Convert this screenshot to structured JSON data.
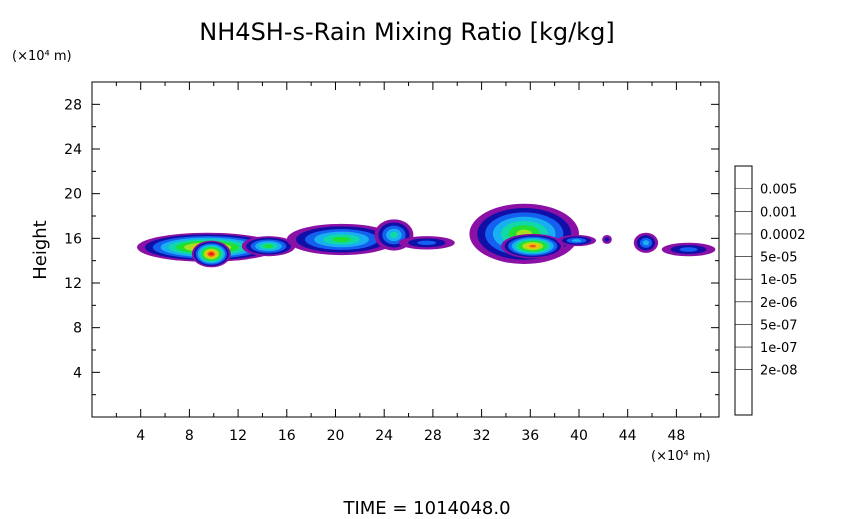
{
  "chart_data": {
    "type": "heatmap",
    "title": "NH4SH-s-Rain Mixing Ratio [kg/kg]",
    "ylabel": "Height",
    "xunit": "(×10⁴ m)",
    "yunit": "(×10⁴ m)",
    "footer": "TIME  =  1014048.0",
    "xlim": [
      0,
      51.5
    ],
    "ylim": [
      0,
      30
    ],
    "x_ticks": [
      4,
      8,
      12,
      16,
      20,
      24,
      28,
      32,
      36,
      40,
      44,
      48
    ],
    "y_ticks": [
      4,
      8,
      12,
      16,
      20,
      24,
      28
    ],
    "colorbar": {
      "levels": [
        "0.005",
        "0.001",
        "0.0002",
        "5e-05",
        "1e-05",
        "2e-06",
        "5e-07",
        "1e-07",
        "2e-08"
      ],
      "colors": [
        "#8b10a6",
        "#1010a8",
        "#1460f0",
        "#18b0f0",
        "#10d8a8",
        "#20e030",
        "#a8e020",
        "#f0c010",
        "#f06010",
        "#f01020",
        "#f08aa0"
      ]
    },
    "clouds": [
      {
        "x": 9.5,
        "y": 15.2,
        "rx": 5.8,
        "ry": 1.3,
        "peak": 9
      },
      {
        "x": 9.8,
        "y": 14.6,
        "rx": 1.6,
        "ry": 1.2,
        "peak": 10
      },
      {
        "x": 14.5,
        "y": 15.3,
        "rx": 2.2,
        "ry": 0.9,
        "peak": 6
      },
      {
        "x": 20.5,
        "y": 15.9,
        "rx": 4.5,
        "ry": 1.4,
        "peak": 6
      },
      {
        "x": 24.8,
        "y": 16.3,
        "rx": 1.6,
        "ry": 1.4,
        "peak": 5
      },
      {
        "x": 27.5,
        "y": 15.6,
        "rx": 2.3,
        "ry": 0.6,
        "peak": 3
      },
      {
        "x": 35.5,
        "y": 16.4,
        "rx": 4.5,
        "ry": 2.7,
        "peak": 7
      },
      {
        "x": 36.2,
        "y": 15.3,
        "rx": 2.6,
        "ry": 1.1,
        "peak": 9
      },
      {
        "x": 39.8,
        "y": 15.8,
        "rx": 1.6,
        "ry": 0.5,
        "peak": 4
      },
      {
        "x": 42.3,
        "y": 15.9,
        "rx": 0.4,
        "ry": 0.4,
        "peak": 2
      },
      {
        "x": 45.5,
        "y": 15.6,
        "rx": 1.0,
        "ry": 0.9,
        "peak": 4
      },
      {
        "x": 49.0,
        "y": 15.0,
        "rx": 2.2,
        "ry": 0.6,
        "peak": 3
      }
    ]
  }
}
